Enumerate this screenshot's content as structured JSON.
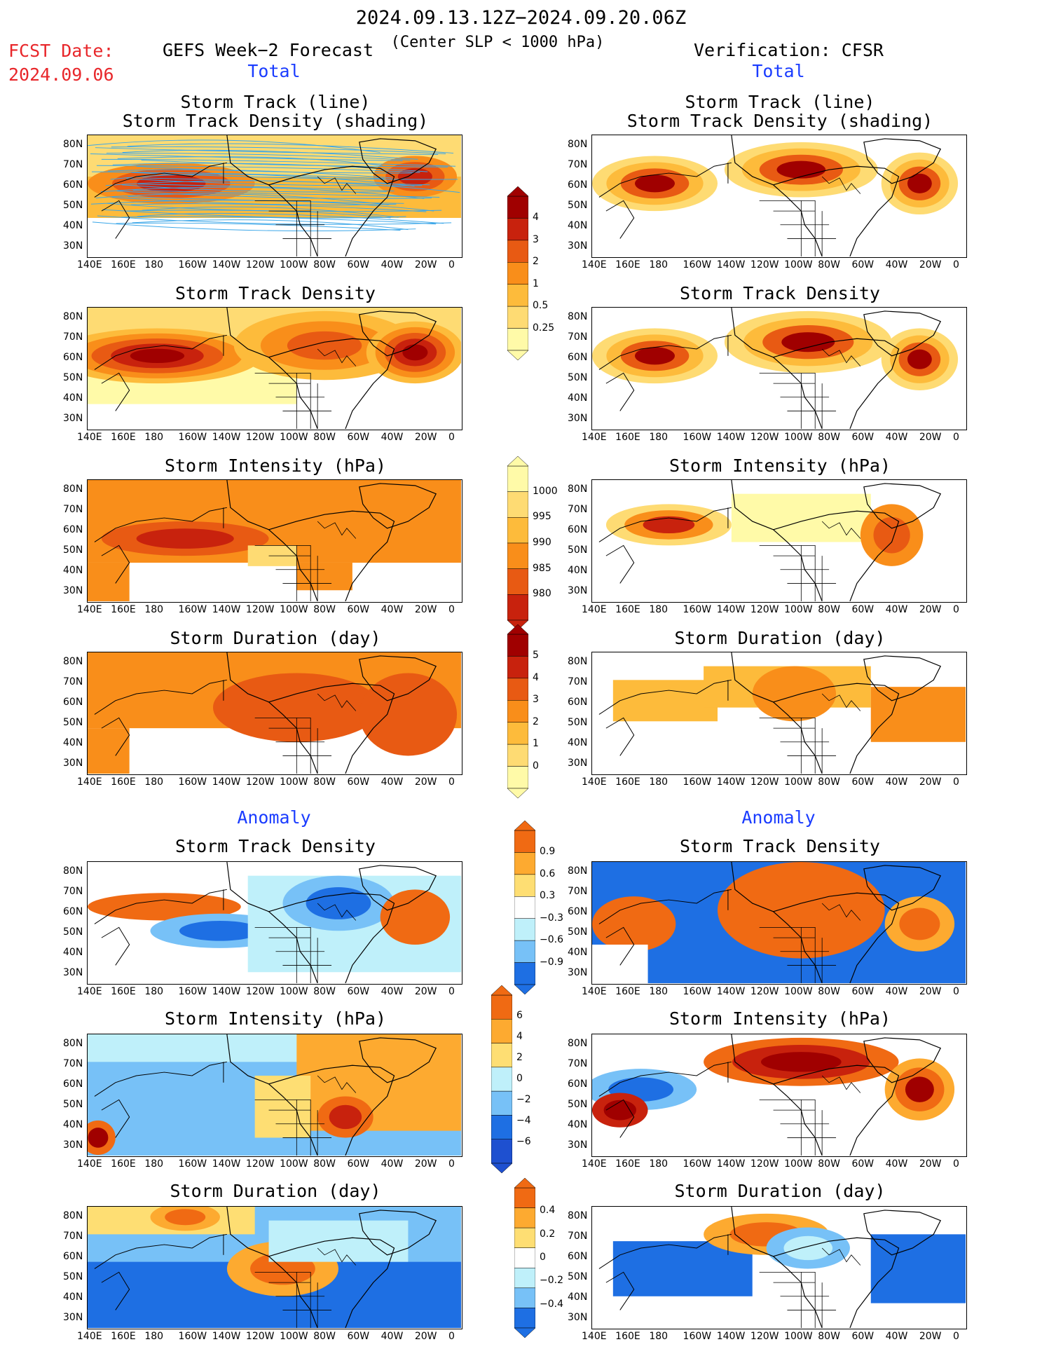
{
  "header": {
    "date_range": "2024.09.13.12Z−2024.09.20.06Z",
    "subtitle": "(Center SLP < 1000 hPa)",
    "fcst_label": "FCST Date:",
    "fcst_date": "2024.09.06",
    "left_title": "GEFS Week−2 Forecast",
    "right_title": "Verification: CFSR",
    "total_label": "Total",
    "anomaly_label": "Anomaly"
  },
  "axes": {
    "lon_ticks": [
      "140E",
      "160E",
      "180",
      "160W",
      "140W",
      "120W",
      "100W",
      "80W",
      "60W",
      "40W",
      "20W",
      "0"
    ],
    "lat_ticks": [
      "80N",
      "70N",
      "60N",
      "50N",
      "40N",
      "30N"
    ]
  },
  "panels": {
    "track_title_1": "Storm Track (line)",
    "track_title_2": "Storm Track Density (shading)",
    "density_title": "Storm Track Density",
    "intensity_title": "Storm Intensity (hPa)",
    "duration_title": "Storm Duration (day)"
  },
  "colorbars": {
    "density_total": [
      "4",
      "3",
      "2",
      "1",
      "0.5",
      "0.25"
    ],
    "intensity_total": [
      "1000",
      "995",
      "990",
      "985",
      "980"
    ],
    "duration_total": [
      "5",
      "4",
      "3",
      "2",
      "1",
      "0"
    ],
    "density_anom": [
      "0.9",
      "0.6",
      "0.3",
      "−0.3",
      "−0.6",
      "−0.9"
    ],
    "intensity_anom": [
      "6",
      "4",
      "2",
      "0",
      "−2",
      "−4",
      "−6"
    ],
    "duration_anom": [
      "0.4",
      "0.2",
      "0",
      "−0.2",
      "−0.4"
    ]
  },
  "colors": {
    "warm_scale": [
      "#fffaa8",
      "#fedb73",
      "#fdbb3b",
      "#f98e1a",
      "#e85a13",
      "#c8220d",
      "#a00000"
    ],
    "anom_pos": [
      "#fede73",
      "#fdaa30",
      "#f06a13"
    ],
    "anom_neg": [
      "#bff0fa",
      "#77c1f7",
      "#1e6fe3"
    ]
  }
}
